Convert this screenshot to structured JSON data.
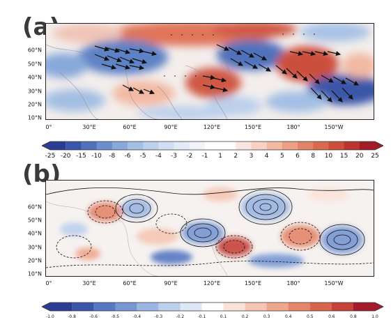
{
  "panels": [
    {
      "label": "(a)"
    },
    {
      "label": "(b)"
    }
  ],
  "lat_labels": [
    "60°N",
    "50°N",
    "40°N",
    "30°N",
    "20°N",
    "10°N"
  ],
  "lon_labels": [
    "0°",
    "30°E",
    "60°E",
    "90°E",
    "120°E",
    "150°E",
    "180°",
    "150°W"
  ],
  "colorbar_a": {
    "ticks": [
      "-25",
      "-20",
      "-15",
      "-10",
      "-8",
      "-6",
      "-5",
      "-4",
      "-3",
      "-2",
      "-1",
      "1",
      "2",
      "3",
      "4",
      "5",
      "6",
      "8",
      "10",
      "15",
      "20",
      "25"
    ],
    "colors": [
      "#2d3c93",
      "#3a56a8",
      "#4f72bb",
      "#6b8fcd",
      "#88a9da",
      "#a3bfe4",
      "#bcd0ec",
      "#d1def3",
      "#e2eaf6",
      "#f0f4fa",
      "#ffffff",
      "#ffffff",
      "#fbe6df",
      "#f7d1c2",
      "#f2b9a3",
      "#ec9f83",
      "#e38466",
      "#d96a4e",
      "#cc4f3c",
      "#bb352f",
      "#a11c27"
    ]
  },
  "colorbar_b": {
    "ticks": [
      "-1.0",
      "-0.8",
      "-0.6",
      "-0.5",
      "-0.4",
      "-0.3",
      "-0.2",
      "-0.1",
      "0.1",
      "0.2",
      "0.3",
      "0.4",
      "0.5",
      "0.6",
      "0.8",
      "1.0"
    ],
    "colors": [
      "#2d3c93",
      "#3a56a8",
      "#5677c2",
      "#7797d3",
      "#9bb6e1",
      "#bcd0ec",
      "#dde7f5",
      "#ffffff",
      "#fbe2d9",
      "#f5c6b3",
      "#eea68c",
      "#e5866a",
      "#d9644d",
      "#c5423a",
      "#a61b2b"
    ]
  }
}
